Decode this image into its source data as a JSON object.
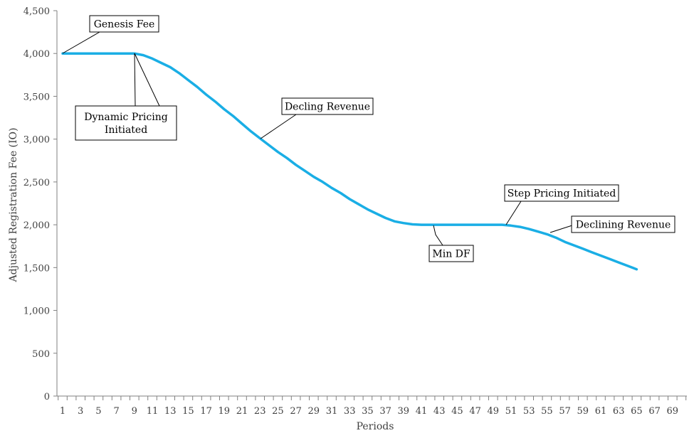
{
  "chart_data": {
    "type": "line",
    "xlabel": "Periods",
    "ylabel": "Adjusted Registration Fee (IO)",
    "ylim": [
      0,
      4500
    ],
    "xlim": [
      1,
      70
    ],
    "grid": false,
    "yticks": [
      "0",
      "500",
      "1,000",
      "1,500",
      "2,000",
      "2,500",
      "3,000",
      "3,500",
      "4,000",
      "4,500"
    ],
    "ytick_values": [
      0,
      500,
      1000,
      1500,
      2000,
      2500,
      3000,
      3500,
      4000,
      4500
    ],
    "xticks": [
      "1",
      "3",
      "5",
      "7",
      "9",
      "11",
      "13",
      "15",
      "17",
      "19",
      "21",
      "23",
      "25",
      "27",
      "29",
      "31",
      "33",
      "35",
      "37",
      "39",
      "41",
      "43",
      "45",
      "47",
      "49",
      "51",
      "53",
      "55",
      "57",
      "59",
      "61",
      "63",
      "65",
      "67",
      "69"
    ],
    "xtick_values": [
      1,
      3,
      5,
      7,
      9,
      11,
      13,
      15,
      17,
      19,
      21,
      23,
      25,
      27,
      29,
      31,
      33,
      35,
      37,
      39,
      41,
      43,
      45,
      47,
      49,
      51,
      53,
      55,
      57,
      59,
      61,
      63,
      65,
      67,
      69
    ],
    "line_color": "#1AAEE5",
    "series": [
      {
        "x": [
          1,
          2,
          3,
          4,
          5,
          6,
          7,
          8,
          9,
          10,
          11,
          12,
          13,
          14,
          15,
          16,
          17,
          18,
          19,
          20,
          21,
          22,
          23,
          24,
          25,
          26,
          27,
          28,
          29,
          30,
          31,
          32,
          33,
          34,
          35,
          36,
          37,
          38,
          39,
          40,
          41,
          42,
          43,
          44,
          45,
          46,
          47,
          48,
          49,
          50,
          51,
          52,
          53,
          54,
          55,
          56,
          57,
          58,
          59,
          60,
          61,
          62,
          63,
          64,
          65
        ],
        "values": [
          4000,
          4000,
          4000,
          4000,
          4000,
          4000,
          4000,
          4000,
          4000,
          3980,
          3940,
          3890,
          3840,
          3770,
          3690,
          3610,
          3520,
          3440,
          3350,
          3270,
          3180,
          3090,
          3010,
          2930,
          2850,
          2780,
          2700,
          2630,
          2560,
          2500,
          2430,
          2370,
          2300,
          2240,
          2180,
          2130,
          2080,
          2040,
          2020,
          2005,
          2000,
          2000,
          2000,
          2000,
          2000,
          2000,
          2000,
          2000,
          2000,
          2000,
          1990,
          1975,
          1950,
          1920,
          1890,
          1850,
          1800,
          1760,
          1720,
          1680,
          1640,
          1600,
          1560,
          1520,
          1480
        ]
      }
    ],
    "annotations": [
      {
        "text": "Genesis Fee",
        "x": 1,
        "y": 4000
      },
      {
        "text": "Dynamic Pricing\nInitiated",
        "x": 9,
        "y": 4000
      },
      {
        "text": "Decling Revenue",
        "x": 23,
        "y": 3010
      },
      {
        "text": "Min DF",
        "x": 41,
        "y": 2000
      },
      {
        "text": "Step Pricing Initiated",
        "x": 50,
        "y": 2000
      },
      {
        "text": "Declining Revenue",
        "x": 55,
        "y": 1890
      }
    ]
  }
}
